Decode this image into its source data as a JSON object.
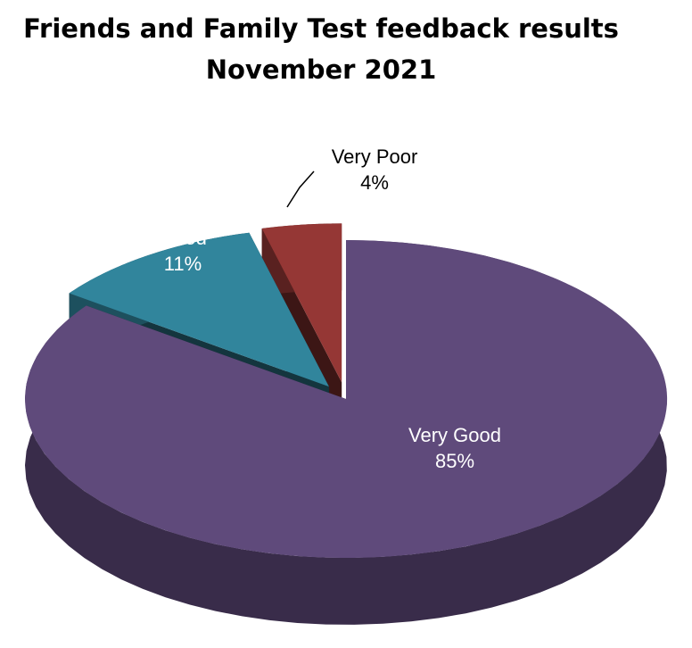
{
  "chart_data": {
    "type": "pie",
    "title": "Friends and Family Test feedback results",
    "subtitle": "November 2021",
    "categories": [
      "Very Good",
      "Good",
      "Very Poor"
    ],
    "values": [
      85,
      11,
      4
    ],
    "value_labels": [
      "85%",
      "11%",
      "4%"
    ],
    "colors": [
      "#5f4a7b",
      "#31859c",
      "#953735"
    ]
  }
}
